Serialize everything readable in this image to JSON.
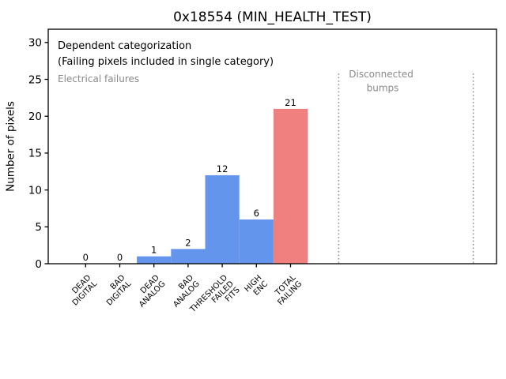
{
  "chart_data": {
    "type": "bar",
    "title": "0x18554 (MIN_HEALTH_TEST)",
    "xlabel": "",
    "ylabel": "Number of pixels",
    "categories": [
      "DEAD\nDIGITAL",
      "BAD\nDIGITAL",
      "DEAD\nANALOG",
      "BAD\nANALOG",
      "THRESHOLD\nFAILED\nFITS",
      "HIGH\nENC",
      "TOTAL\nFAILING"
    ],
    "values": [
      0,
      0,
      1,
      2,
      12,
      6,
      21
    ],
    "bar_value_labels": [
      "0",
      "0",
      "1",
      "2",
      "12",
      "6",
      "21"
    ],
    "bar_colors": [
      "#6495ED",
      "#6495ED",
      "#6495ED",
      "#6495ED",
      "#6495ED",
      "#6495ED",
      "#F08080"
    ],
    "yticks": [
      0,
      5,
      10,
      15,
      20,
      25,
      30
    ],
    "ylim": [
      0,
      31.8
    ],
    "xlim": [
      -1.09,
      12.03
    ],
    "grid": false,
    "legend": null,
    "annotations": [
      {
        "text": "Dependent categorization",
        "color": "#000000"
      },
      {
        "text": "(Failing pixels included in single category)",
        "color": "#000000"
      },
      {
        "text": "Electrical failures",
        "color": "#8a8a8a"
      },
      {
        "text": "Disconnected bumps",
        "lines": [
          "Disconnected",
          "bumps"
        ],
        "color": "#8a8a8a"
      }
    ],
    "region_dividers": {
      "style": "dotted",
      "color": "#909090",
      "x": [
        7.41,
        11.35
      ],
      "y_top": 25.8
    },
    "colors": {
      "bar_blue": "#6495ED",
      "bar_red": "#F08080",
      "muted_text": "#8a8a8a",
      "divider": "#909090",
      "axis": "#000000",
      "background": "#ffffff"
    }
  }
}
